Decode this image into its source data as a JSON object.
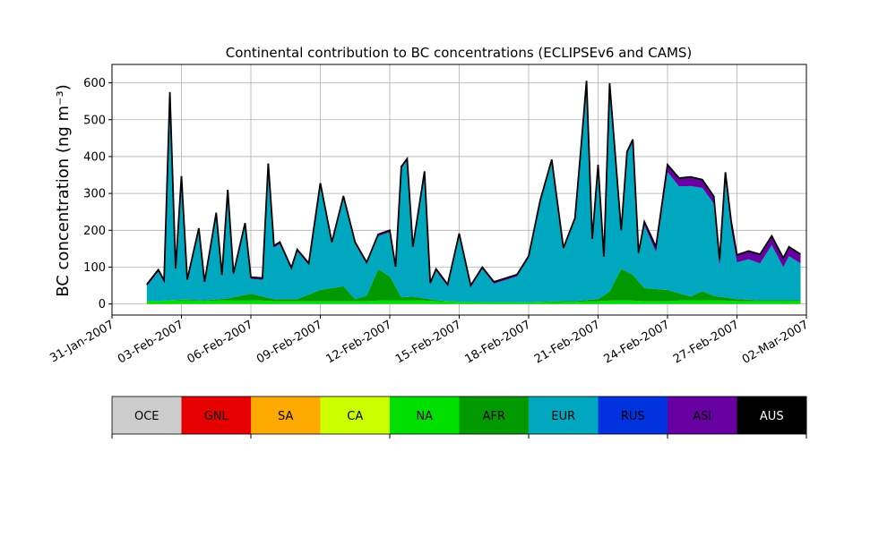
{
  "chart_data": {
    "type": "area",
    "title": "Continental contribution to BC concentrations (ECLIPSEv6 and CAMS)",
    "ylabel": "BC concentration (ng m⁻³)",
    "xlabel": "",
    "ylim": [
      -30,
      650
    ],
    "yticks": [
      0,
      100,
      200,
      300,
      400,
      500,
      600
    ],
    "xlim": [
      "2007-01-31",
      "2007-03-02"
    ],
    "xticks": [
      "31-Jan-2007",
      "03-Feb-2007",
      "06-Feb-2007",
      "09-Feb-2007",
      "12-Feb-2007",
      "15-Feb-2007",
      "18-Feb-2007",
      "21-Feb-2007",
      "24-Feb-2007",
      "27-Feb-2007",
      "02-Mar-2007"
    ],
    "grid": true,
    "stack_order": [
      "NA",
      "AFR",
      "EUR",
      "ASI"
    ],
    "total_line_color": "#000000",
    "legend": {
      "placement": "colorbar-below",
      "labels": [
        "OCE",
        "GNL",
        "SA",
        "CA",
        "NA",
        "AFR",
        "EUR",
        "RUS",
        "ASI",
        "AUS"
      ],
      "colors": [
        "#cccccc",
        "#e60000",
        "#ffaa00",
        "#ccff00",
        "#00e000",
        "#009900",
        "#00a8bf",
        "#0033e0",
        "#6600a0",
        "#000000"
      ],
      "label_colors": [
        "#000000",
        "#000000",
        "#000000",
        "#000000",
        "#000000",
        "#000000",
        "#000000",
        "#000000",
        "#000000",
        "#ffffff"
      ]
    },
    "series": [
      {
        "name": "NA",
        "color": "#00e000",
        "points": [
          [
            "2007-02-02",
            8
          ],
          [
            "2007-02-03",
            10
          ],
          [
            "2007-02-04",
            8
          ],
          [
            "2007-02-05",
            10
          ],
          [
            "2007-02-06",
            10
          ],
          [
            "2007-02-07",
            8
          ],
          [
            "2007-02-08",
            8
          ],
          [
            "2007-02-09",
            8
          ],
          [
            "2007-02-10",
            8
          ],
          [
            "2007-02-11",
            8
          ],
          [
            "2007-02-12",
            10
          ],
          [
            "2007-02-13",
            10
          ],
          [
            "2007-02-14",
            8
          ],
          [
            "2007-02-15",
            6
          ],
          [
            "2007-02-16",
            5
          ],
          [
            "2007-02-17",
            5
          ],
          [
            "2007-02-18",
            5
          ],
          [
            "2007-02-19",
            5
          ],
          [
            "2007-02-20",
            6
          ],
          [
            "2007-02-21",
            8
          ],
          [
            "2007-02-22",
            10
          ],
          [
            "2007-02-23",
            8
          ],
          [
            "2007-02-24",
            8
          ],
          [
            "2007-02-25",
            10
          ],
          [
            "2007-02-26",
            10
          ],
          [
            "2007-02-27",
            8
          ],
          [
            "2007-02-28",
            8
          ],
          [
            "2007-03-01",
            8
          ]
        ]
      },
      {
        "name": "AFR",
        "color": "#009900",
        "points": [
          [
            "2007-02-02",
            0
          ],
          [
            "2007-02-03",
            2
          ],
          [
            "2007-02-04",
            2
          ],
          [
            "2007-02-05",
            5
          ],
          [
            "2007-02-06",
            18
          ],
          [
            "2007-02-07",
            5
          ],
          [
            "2007-02-08",
            5
          ],
          [
            "2007-02-09",
            30
          ],
          [
            "2007-02-10",
            40
          ],
          [
            "2007-02-10 12:00",
            5
          ],
          [
            "2007-02-11",
            15
          ],
          [
            "2007-02-11 12:00",
            85
          ],
          [
            "2007-02-12",
            65
          ],
          [
            "2007-02-12 12:00",
            8
          ],
          [
            "2007-02-13",
            10
          ],
          [
            "2007-02-14",
            2
          ],
          [
            "2007-02-15",
            0
          ],
          [
            "2007-02-16",
            0
          ],
          [
            "2007-02-17",
            0
          ],
          [
            "2007-02-18",
            0
          ],
          [
            "2007-02-19",
            2
          ],
          [
            "2007-02-20",
            2
          ],
          [
            "2007-02-21",
            5
          ],
          [
            "2007-02-21 12:00",
            25
          ],
          [
            "2007-02-22",
            85
          ],
          [
            "2007-02-22 12:00",
            70
          ],
          [
            "2007-02-23",
            35
          ],
          [
            "2007-02-24",
            30
          ],
          [
            "2007-02-24 12:00",
            20
          ],
          [
            "2007-02-25",
            10
          ],
          [
            "2007-02-25 12:00",
            25
          ],
          [
            "2007-02-26",
            12
          ],
          [
            "2007-02-27",
            5
          ],
          [
            "2007-02-28",
            2
          ],
          [
            "2007-03-01",
            2
          ]
        ]
      },
      {
        "name": "EUR",
        "color": "#00a8bf",
        "points": [
          [
            "2007-02-01 12:00",
            40
          ],
          [
            "2007-02-02",
            80
          ],
          [
            "2007-02-02 06:00",
            50
          ],
          [
            "2007-02-02 12:00",
            560
          ],
          [
            "2007-02-02 18:00",
            80
          ],
          [
            "2007-02-03",
            330
          ],
          [
            "2007-02-03 06:00",
            50
          ],
          [
            "2007-02-03 18:00",
            190
          ],
          [
            "2007-02-04",
            45
          ],
          [
            "2007-02-04 12:00",
            230
          ],
          [
            "2007-02-04 18:00",
            60
          ],
          [
            "2007-02-05",
            290
          ],
          [
            "2007-02-05 06:00",
            60
          ],
          [
            "2007-02-05 18:00",
            190
          ],
          [
            "2007-02-06",
            40
          ],
          [
            "2007-02-06 12:00",
            45
          ],
          [
            "2007-02-06 18:00",
            360
          ],
          [
            "2007-02-07",
            140
          ],
          [
            "2007-02-07 06:00",
            150
          ],
          [
            "2007-02-07 18:00",
            80
          ],
          [
            "2007-02-08",
            130
          ],
          [
            "2007-02-08 12:00",
            80
          ],
          [
            "2007-02-09",
            285
          ],
          [
            "2007-02-09 12:00",
            120
          ],
          [
            "2007-02-10",
            240
          ],
          [
            "2007-02-10 12:00",
            150
          ],
          [
            "2007-02-11",
            85
          ],
          [
            "2007-02-11 12:00",
            90
          ],
          [
            "2007-02-12",
            120
          ],
          [
            "2007-02-12 06:00",
            50
          ],
          [
            "2007-02-12 12:00",
            350
          ],
          [
            "2007-02-12 18:00",
            370
          ],
          [
            "2007-02-13",
            130
          ],
          [
            "2007-02-13 12:00",
            340
          ],
          [
            "2007-02-13 18:00",
            40
          ],
          [
            "2007-02-14",
            80
          ],
          [
            "2007-02-14 12:00",
            40
          ],
          [
            "2007-02-15",
            180
          ],
          [
            "2007-02-15 12:00",
            40
          ],
          [
            "2007-02-16",
            90
          ],
          [
            "2007-02-16 12:00",
            50
          ],
          [
            "2007-02-17",
            60
          ],
          [
            "2007-02-17 12:00",
            70
          ],
          [
            "2007-02-18",
            120
          ],
          [
            "2007-02-18 12:00",
            270
          ],
          [
            "2007-02-19",
            380
          ],
          [
            "2007-02-19 12:00",
            140
          ],
          [
            "2007-02-20",
            220
          ],
          [
            "2007-02-20 06:00",
            400
          ],
          [
            "2007-02-20 12:00",
            590
          ],
          [
            "2007-02-20 18:00",
            160
          ],
          [
            "2007-02-21",
            360
          ],
          [
            "2007-02-21 06:00",
            100
          ],
          [
            "2007-02-21 12:00",
            560
          ],
          [
            "2007-02-22",
            100
          ],
          [
            "2007-02-22 06:00",
            320
          ],
          [
            "2007-02-22 12:00",
            360
          ],
          [
            "2007-02-22 18:00",
            70
          ],
          [
            "2007-02-23",
            170
          ],
          [
            "2007-02-23 12:00",
            100
          ],
          [
            "2007-02-24",
            320
          ],
          [
            "2007-02-24 12:00",
            290
          ],
          [
            "2007-02-25",
            300
          ],
          [
            "2007-02-25 12:00",
            280
          ],
          [
            "2007-02-26",
            250
          ],
          [
            "2007-02-26 06:00",
            80
          ],
          [
            "2007-02-26 12:00",
            320
          ],
          [
            "2007-02-26 18:00",
            190
          ],
          [
            "2007-02-27",
            100
          ],
          [
            "2007-02-27 12:00",
            110
          ],
          [
            "2007-02-28",
            100
          ],
          [
            "2007-02-28 12:00",
            150
          ],
          [
            "2007-03-01",
            90
          ],
          [
            "2007-03-01 06:00",
            120
          ],
          [
            "2007-03-01 18:00",
            100
          ]
        ]
      },
      {
        "name": "ASI",
        "color": "#6600a0",
        "points": [
          [
            "2007-02-02",
            5
          ],
          [
            "2007-02-03",
            5
          ],
          [
            "2007-02-04",
            5
          ],
          [
            "2007-02-05",
            5
          ],
          [
            "2007-02-06",
            5
          ],
          [
            "2007-02-07",
            5
          ],
          [
            "2007-02-08",
            5
          ],
          [
            "2007-02-09",
            5
          ],
          [
            "2007-02-10",
            5
          ],
          [
            "2007-02-11",
            5
          ],
          [
            "2007-02-12",
            5
          ],
          [
            "2007-02-13",
            5
          ],
          [
            "2007-02-14",
            5
          ],
          [
            "2007-02-15",
            5
          ],
          [
            "2007-02-16",
            5
          ],
          [
            "2007-02-17",
            5
          ],
          [
            "2007-02-18",
            5
          ],
          [
            "2007-02-19",
            5
          ],
          [
            "2007-02-20",
            5
          ],
          [
            "2007-02-21",
            5
          ],
          [
            "2007-02-22",
            5
          ],
          [
            "2007-02-23",
            10
          ],
          [
            "2007-02-24",
            20
          ],
          [
            "2007-02-25",
            25
          ],
          [
            "2007-02-26",
            20
          ],
          [
            "2007-02-27",
            20
          ],
          [
            "2007-02-28",
            25
          ],
          [
            "2007-03-01",
            25
          ]
        ]
      }
    ]
  }
}
